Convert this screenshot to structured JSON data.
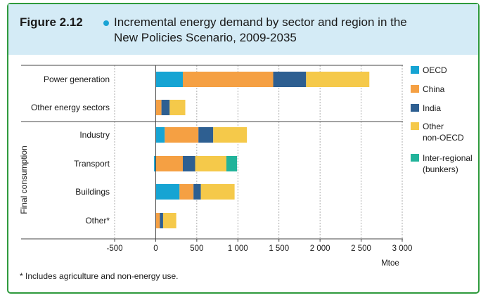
{
  "figure": {
    "label": "Figure 2.12",
    "title_line1": "Incremental energy demand by sector and region in the",
    "title_line2": "New Policies Scenario, 2009-2035",
    "footnote": "* Includes agriculture and non-energy use."
  },
  "colors": {
    "header_bg": "#d4ebf6",
    "frame_border": "#2e9a3c",
    "OECD": "#16a4d3",
    "China": "#f5a043",
    "India": "#2e5f91",
    "Other non-OECD": "#f5c94a",
    "Inter-regional (bunkers)": "#22b39a"
  },
  "chart_data": {
    "type": "bar",
    "orientation": "horizontal",
    "stacked": true,
    "xlabel": "Mtoe",
    "xlim": [
      -500,
      3000
    ],
    "xticks": [
      "-500",
      "0",
      "500",
      "1 000",
      "1 500",
      "2 000",
      "2 500",
      "3 000"
    ],
    "group_label": "Final consumption",
    "legend_position": "right",
    "categories": [
      "Power generation",
      "Other energy sectors",
      "Industry",
      "Transport",
      "Buildings",
      "Other*"
    ],
    "series": [
      {
        "name": "OECD",
        "legend_lines": [
          "OECD"
        ],
        "values": [
          330,
          0,
          110,
          -20,
          290,
          0
        ]
      },
      {
        "name": "China",
        "legend_lines": [
          "China"
        ],
        "values": [
          1100,
          70,
          410,
          330,
          170,
          50
        ]
      },
      {
        "name": "India",
        "legend_lines": [
          "India"
        ],
        "values": [
          400,
          100,
          180,
          150,
          90,
          40
        ]
      },
      {
        "name": "Other non-OECD",
        "legend_lines": [
          "Other",
          "non-OECD"
        ],
        "values": [
          770,
          190,
          410,
          380,
          410,
          160
        ]
      },
      {
        "name": "Inter-regional (bunkers)",
        "legend_lines": [
          "Inter-regional",
          "(bunkers)"
        ],
        "values": [
          0,
          0,
          0,
          130,
          0,
          0
        ]
      }
    ]
  }
}
